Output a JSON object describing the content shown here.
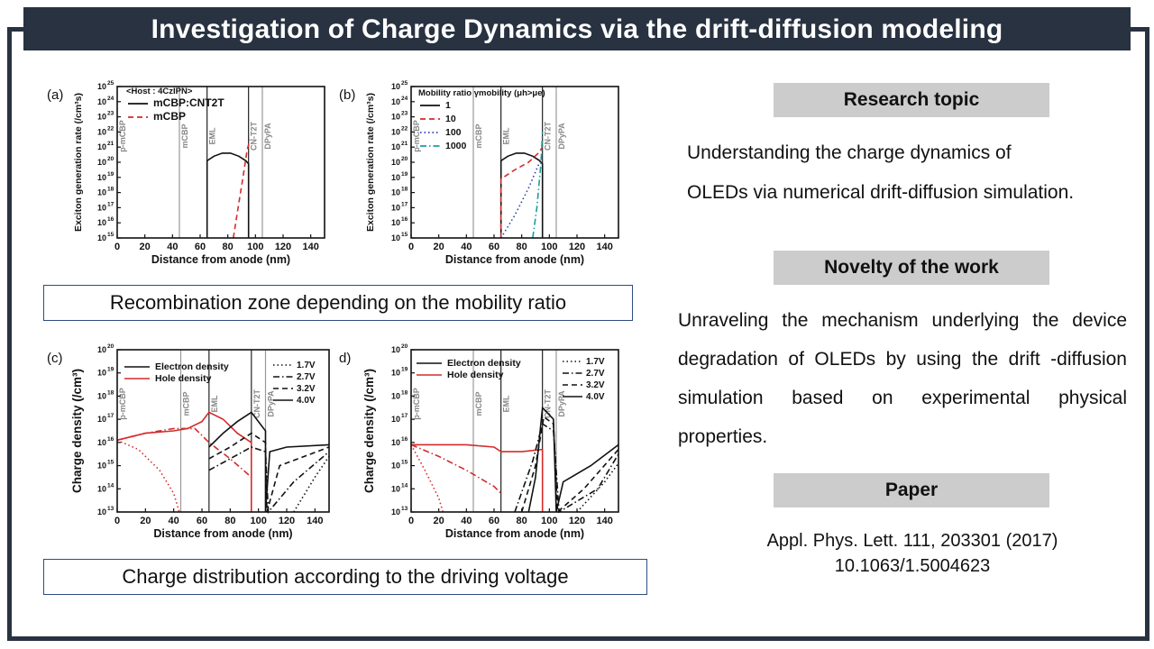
{
  "title": "Investigation of Charge Dynamics via the drift-diffusion modeling",
  "colors": {
    "navy": "#283240",
    "red": "#d42b2b",
    "teal": "#1a9e9e",
    "blue": "#2b3fb0",
    "gray_head": "#cccccc",
    "caption_border": "#2f4d7e"
  },
  "captions": {
    "recombination": "Recombination zone depending on the mobility ratio",
    "charge": "Charge distribution according to the driving voltage"
  },
  "right": {
    "research_topic": {
      "heading": "Research topic",
      "lines": [
        "Understanding the charge dynamics of",
        "OLEDs via numerical drift-diffusion simulation."
      ]
    },
    "novelty": {
      "heading": "Novelty of the work",
      "text": "Unraveling the mechanism underlying the device degradation of OLEDs by using the drift -diffusion simulation based on experimental physical properties."
    },
    "paper": {
      "heading": "Paper",
      "citation": "Appl. Phys. Lett. 111, 203301 (2017)",
      "doi": "10.1063/1.5004623"
    }
  },
  "chart_data": [
    {
      "panel": "(a)",
      "type": "line",
      "xlabel": "Distance from anode (nm)",
      "ylabel": "Exciton generation rate (/cm³s)",
      "xlim": [
        0,
        150
      ],
      "ylim_log10": [
        15,
        25
      ],
      "x_ticks": [
        "0",
        "20",
        "40",
        "60",
        "80",
        "100",
        "120",
        "140"
      ],
      "y_tick_exps": [
        15,
        16,
        17,
        18,
        19,
        20,
        21,
        22,
        23,
        24,
        25
      ],
      "layers": [
        {
          "name": "p-mCBP",
          "x": 0
        },
        {
          "name": "mCBP",
          "x": 45
        },
        {
          "name": "EML",
          "x": 65
        },
        {
          "name": "CN-T2T",
          "x": 95
        },
        {
          "name": "DPyPA",
          "x": 105
        }
      ],
      "legend_title": "<Host : 4CzIPN>",
      "series": [
        {
          "name": "mCBP:CNT2T",
          "style": "solid",
          "color": "#111111",
          "points": [
            [
              65,
              15
            ],
            [
              65,
              20.1
            ],
            [
              70,
              20.4
            ],
            [
              76,
              20.6
            ],
            [
              82,
              20.6
            ],
            [
              88,
              20.4
            ],
            [
              93,
              20.1
            ],
            [
              95,
              19.9
            ],
            [
              95,
              15
            ]
          ]
        },
        {
          "name": "mCBP",
          "style": "dashed",
          "color": "#d42b2b",
          "points": [
            [
              84,
              15
            ],
            [
              88,
              17.3
            ],
            [
              91,
              19
            ],
            [
              94,
              20.8
            ],
            [
              96,
              21.5
            ]
          ]
        }
      ]
    },
    {
      "panel": "(b)",
      "type": "line",
      "xlabel": "Distance from anode (nm)",
      "ylabel": "Exciton generation rate (/cm³s)",
      "xlim": [
        0,
        150
      ],
      "ylim_log10": [
        15,
        25
      ],
      "x_ticks": [
        "0",
        "20",
        "40",
        "60",
        "80",
        "100",
        "120",
        "140"
      ],
      "y_tick_exps": [
        15,
        16,
        17,
        18,
        19,
        20,
        21,
        22,
        23,
        24,
        25
      ],
      "layers": [
        {
          "name": "p-mCBP",
          "x": 0
        },
        {
          "name": "mCBP",
          "x": 45
        },
        {
          "name": "EML",
          "x": 65
        },
        {
          "name": "CN-T2T",
          "x": 95
        },
        {
          "name": "DPyPA",
          "x": 105
        }
      ],
      "legend_title": "Mobility ratio γmobility (μh>μe)",
      "series": [
        {
          "name": "1",
          "style": "solid",
          "color": "#111111",
          "points": [
            [
              65,
              15
            ],
            [
              65,
              20.1
            ],
            [
              70,
              20.4
            ],
            [
              76,
              20.6
            ],
            [
              82,
              20.6
            ],
            [
              88,
              20.4
            ],
            [
              93,
              20.1
            ],
            [
              95,
              19.9
            ],
            [
              95,
              15
            ]
          ]
        },
        {
          "name": "10",
          "style": "dashed",
          "color": "#d42b2b",
          "points": [
            [
              65,
              15
            ],
            [
              65,
              18.9
            ],
            [
              75,
              19.5
            ],
            [
              85,
              20.0
            ],
            [
              92,
              20.6
            ],
            [
              95,
              21
            ]
          ]
        },
        {
          "name": "100",
          "style": "dotted",
          "color": "#2b3fb0",
          "points": [
            [
              65,
              15
            ],
            [
              75,
              16.5
            ],
            [
              85,
              18.3
            ],
            [
              92,
              19.8
            ],
            [
              95,
              20.5
            ]
          ]
        },
        {
          "name": "1000",
          "style": "dashdot",
          "color": "#1a9e9e",
          "points": [
            [
              88,
              15
            ],
            [
              91,
              17
            ],
            [
              94,
              20
            ],
            [
              95,
              22
            ]
          ]
        }
      ]
    },
    {
      "panel": "(c)",
      "type": "line",
      "xlabel": "Distance from anode (nm)",
      "ylabel": "Charge density (/cm³)",
      "xlim": [
        0,
        150
      ],
      "ylim_log10": [
        13,
        20
      ],
      "x_ticks": [
        "0",
        "20",
        "40",
        "60",
        "80",
        "100",
        "120",
        "140"
      ],
      "y_tick_exps": [
        13,
        14,
        15,
        16,
        17,
        18,
        19,
        20
      ],
      "layers": [
        {
          "name": "p-mCBP",
          "x": 0
        },
        {
          "name": "mCBP",
          "x": 45
        },
        {
          "name": "EML",
          "x": 65
        },
        {
          "name": "CN-T2T",
          "x": 95
        },
        {
          "name": "DPyPA",
          "x": 105
        }
      ],
      "legend": [
        "Electron density",
        "Hole density"
      ],
      "voltages": [
        "1.7V",
        "2.7V",
        "3.2V",
        "4.0V"
      ],
      "series": [
        {
          "name": "Hole density 4.0V",
          "style": "solid",
          "color": "#d42b2b",
          "points": [
            [
              0,
              16.1
            ],
            [
              20,
              16.4
            ],
            [
              40,
              16.5
            ],
            [
              50,
              16.6
            ],
            [
              60,
              16.9
            ],
            [
              65,
              17.3
            ],
            [
              75,
              17.0
            ],
            [
              85,
              16.4
            ],
            [
              95,
              16.0
            ],
            [
              95,
              13
            ]
          ]
        },
        {
          "name": "Hole density 1.7V",
          "style": "dotted",
          "color": "#d42b2b",
          "points": [
            [
              0,
              16.1
            ],
            [
              15,
              15.7
            ],
            [
              30,
              14.8
            ],
            [
              40,
              13.8
            ],
            [
              44,
              13
            ]
          ]
        },
        {
          "name": "Hole density 2.7V",
          "style": "dashdot",
          "color": "#d42b2b",
          "points": [
            [
              0,
              16.1
            ],
            [
              20,
              16.4
            ],
            [
              40,
              16.6
            ],
            [
              55,
              16.6
            ],
            [
              65,
              16.0
            ],
            [
              80,
              15.3
            ],
            [
              95,
              14.5
            ]
          ]
        },
        {
          "name": "Electron density 4.0V",
          "style": "solid",
          "color": "#111111",
          "points": [
            [
              65,
              15.8
            ],
            [
              75,
              16.4
            ],
            [
              85,
              16.9
            ],
            [
              95,
              17.3
            ],
            [
              105,
              16.5
            ],
            [
              105,
              13
            ],
            [
              108,
              15.6
            ],
            [
              120,
              15.8
            ],
            [
              150,
              15.9
            ]
          ]
        },
        {
          "name": "Electron density 3.2V",
          "style": "dashed",
          "color": "#111111",
          "points": [
            [
              65,
              15.3
            ],
            [
              80,
              15.8
            ],
            [
              95,
              16.4
            ],
            [
              105,
              16.0
            ],
            [
              106,
              13
            ],
            [
              115,
              15.0
            ],
            [
              150,
              15.8
            ]
          ]
        },
        {
          "name": "Electron density 2.7V",
          "style": "dashdot",
          "color": "#111111",
          "points": [
            [
              65,
              14.8
            ],
            [
              80,
              15.3
            ],
            [
              95,
              15.8
            ],
            [
              105,
              15.6
            ],
            [
              107,
              13
            ],
            [
              125,
              14.3
            ],
            [
              150,
              15.6
            ]
          ]
        },
        {
          "name": "Electron density 1.7V",
          "style": "dotted",
          "color": "#111111",
          "points": [
            [
              125,
              13
            ],
            [
              140,
              14.5
            ],
            [
              150,
              15.4
            ]
          ]
        }
      ]
    },
    {
      "panel": "d)",
      "type": "line",
      "xlabel": "Distance from anode (nm)",
      "ylabel": "Charge density (/cm³)",
      "xlim": [
        0,
        150
      ],
      "ylim_log10": [
        13,
        20
      ],
      "x_ticks": [
        "0",
        "20",
        "40",
        "60",
        "80",
        "100",
        "120",
        "140"
      ],
      "y_tick_exps": [
        13,
        14,
        15,
        16,
        17,
        18,
        19,
        20
      ],
      "layers": [
        {
          "name": "p-mCBP",
          "x": 0
        },
        {
          "name": "mCBP",
          "x": 45
        },
        {
          "name": "EML",
          "x": 65
        },
        {
          "name": "CN-T2T",
          "x": 95
        },
        {
          "name": "DPyPA",
          "x": 105
        }
      ],
      "legend": [
        "Electron density",
        "Hole density"
      ],
      "voltages": [
        "1.7V",
        "2.7V",
        "3.2V",
        "4.0V"
      ],
      "series": [
        {
          "name": "Hole density 4.0V",
          "style": "solid",
          "color": "#d42b2b",
          "points": [
            [
              0,
              15.9
            ],
            [
              40,
              15.9
            ],
            [
              60,
              15.8
            ],
            [
              65,
              15.6
            ],
            [
              80,
              15.6
            ],
            [
              95,
              15.7
            ],
            [
              95,
              13
            ]
          ]
        },
        {
          "name": "Hole density 1.7V",
          "style": "dotted",
          "color": "#d42b2b",
          "points": [
            [
              0,
              15.9
            ],
            [
              10,
              14.8
            ],
            [
              20,
              13.6
            ],
            [
              23,
              13
            ]
          ]
        },
        {
          "name": "Hole density 2.7V",
          "style": "dashdot",
          "color": "#d42b2b",
          "points": [
            [
              0,
              15.9
            ],
            [
              20,
              15.4
            ],
            [
              40,
              14.8
            ],
            [
              60,
              14.1
            ],
            [
              65,
              13.8
            ]
          ]
        },
        {
          "name": "Electron density 4.0V",
          "style": "solid",
          "color": "#111111",
          "points": [
            [
              85,
              13
            ],
            [
              90,
              14.5
            ],
            [
              95,
              17.5
            ],
            [
              103,
              17.0
            ],
            [
              105,
              13
            ],
            [
              110,
              14.3
            ],
            [
              130,
              15.0
            ],
            [
              150,
              15.9
            ]
          ]
        },
        {
          "name": "Electron density 3.2V",
          "style": "dashed",
          "color": "#111111",
          "points": [
            [
              80,
              13
            ],
            [
              90,
              15.0
            ],
            [
              96,
              17.1
            ],
            [
              103,
              16.8
            ],
            [
              106,
              13
            ],
            [
              125,
              14.0
            ],
            [
              150,
              15.7
            ]
          ]
        },
        {
          "name": "Electron density 2.7V",
          "style": "dashdot",
          "color": "#111111",
          "points": [
            [
              75,
              13
            ],
            [
              88,
              15.2
            ],
            [
              95,
              16.8
            ],
            [
              103,
              16.5
            ],
            [
              107,
              13
            ],
            [
              135,
              14.0
            ],
            [
              150,
              15.5
            ]
          ]
        },
        {
          "name": "Electron density 1.7V",
          "style": "dotted",
          "color": "#111111",
          "points": [
            [
              120,
              13
            ],
            [
              140,
              14.3
            ],
            [
              150,
              15.1
            ]
          ]
        }
      ]
    }
  ]
}
